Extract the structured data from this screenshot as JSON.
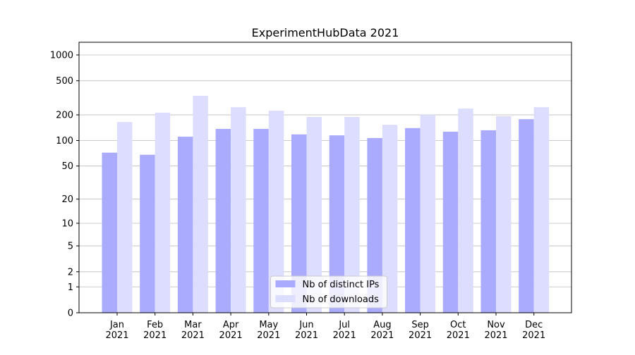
{
  "chart_data": {
    "type": "bar",
    "title": "ExperimentHubData 2021",
    "categories": [
      "Jan 2021",
      "Feb 2021",
      "Mar 2021",
      "Apr 2021",
      "May 2021",
      "Jun 2021",
      "Jul 2021",
      "Aug 2021",
      "Sep 2021",
      "Oct 2021",
      "Nov 2021",
      "Dec 2021"
    ],
    "series": [
      {
        "name": "Nb of distinct IPs",
        "color": "#aaaaff",
        "values": [
          72,
          68,
          111,
          137,
          137,
          118,
          115,
          107,
          140,
          127,
          132,
          178
        ]
      },
      {
        "name": "Nb of downloads",
        "color": "#ddddff",
        "values": [
          165,
          212,
          334,
          246,
          224,
          189,
          189,
          153,
          200,
          237,
          193,
          246
        ]
      }
    ],
    "yscale": "log1p",
    "ylim": [
      0,
      1405
    ],
    "yticks": [
      0,
      1,
      2,
      5,
      10,
      20,
      50,
      100,
      200,
      500,
      1000
    ],
    "grid": true,
    "legend": "bottom"
  }
}
